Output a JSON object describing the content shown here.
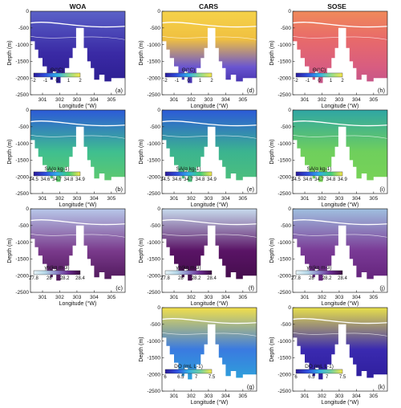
{
  "columns": [
    "WOA",
    "CARS",
    "SOSE"
  ],
  "rows": [
    {
      "variable": "Θ",
      "colorbar_label": "Θ(°C)",
      "ticks": [
        "-2",
        "-1",
        "0",
        "1",
        "2"
      ],
      "colors": [
        "#2a1a9a",
        "#2f4fe0",
        "#2fb0e8",
        "#8edc90",
        "#f5e64a"
      ],
      "panels": [
        "(a)",
        "(d)",
        "(h)"
      ]
    },
    {
      "variable": "SA",
      "colorbar_label": "SA(g kg-1)",
      "ticks": [
        "34.5",
        "34.6",
        "34.7",
        "34.8",
        "34.9"
      ],
      "colors": [
        "#2a1a9a",
        "#2f4fe0",
        "#2fb0e8",
        "#3ecf7a",
        "#f5e64a"
      ],
      "panels": [
        "(b)",
        "(e)",
        "(i)"
      ]
    },
    {
      "variable": "γn",
      "colorbar_label": "γn(kg m-3)",
      "ticks": [
        "27.8",
        "28",
        "28.2",
        "28.4"
      ],
      "colors": [
        "#e8f4f8",
        "#b4d7e8",
        "#8a80c8",
        "#6a2a90",
        "#3a0a40"
      ],
      "panels": [
        "(c)",
        "(f)",
        "(j)"
      ]
    },
    {
      "variable": "DO",
      "colorbar_label": "DO (mL L-1)",
      "ticks": [
        "6",
        "6.5",
        "7",
        "7.5"
      ],
      "colors": [
        "#2a1a9a",
        "#2f4fe0",
        "#2fb0e8",
        "#6fd0a0",
        "#f5e64a"
      ],
      "panels": [
        null,
        "(g)",
        "(k)"
      ]
    }
  ],
  "axes": {
    "ylabel": "Depth (m)",
    "xlabel": "Longitude (°W)",
    "yticks": [
      "0",
      "-500",
      "-1000",
      "-1500",
      "-2000",
      "-2500"
    ],
    "xticks": [
      "301",
      "302",
      "303",
      "304",
      "305"
    ]
  },
  "chart_data": [
    {
      "type": "heatmap",
      "panel": "(a)",
      "source": "WOA",
      "variable": "Θ",
      "xlabel": "Longitude (°W)",
      "ylabel": "Depth (m)",
      "xlim": [
        300.3,
        305.8
      ],
      "ylim": [
        -2500,
        0
      ],
      "colorbar_label": "Θ(°C)",
      "colorbar_range": [
        -2,
        2
      ]
    },
    {
      "type": "heatmap",
      "panel": "(d)",
      "source": "CARS",
      "variable": "Θ",
      "xlabel": "Longitude (°W)",
      "ylabel": "Depth (m)",
      "xlim": [
        300.3,
        305.8
      ],
      "ylim": [
        -2500,
        0
      ],
      "colorbar_label": "Θ(°C)",
      "colorbar_range": [
        -2,
        2
      ]
    },
    {
      "type": "heatmap",
      "panel": "(h)",
      "source": "SOSE",
      "variable": "Θ",
      "xlabel": "Longitude (°W)",
      "ylabel": "Depth (m)",
      "xlim": [
        300.3,
        305.8
      ],
      "ylim": [
        -2500,
        0
      ],
      "colorbar_label": "Θ(°C)",
      "colorbar_range": [
        -2,
        2
      ]
    },
    {
      "type": "heatmap",
      "panel": "(b)",
      "source": "WOA",
      "variable": "SA",
      "xlabel": "Longitude (°W)",
      "ylabel": "Depth (m)",
      "xlim": [
        300.3,
        305.8
      ],
      "ylim": [
        -2500,
        0
      ],
      "colorbar_label": "SA(g kg-1)",
      "colorbar_range": [
        34.5,
        34.9
      ]
    },
    {
      "type": "heatmap",
      "panel": "(e)",
      "source": "CARS",
      "variable": "SA",
      "xlabel": "Longitude (°W)",
      "ylabel": "Depth (m)",
      "xlim": [
        300.3,
        305.8
      ],
      "ylim": [
        -2500,
        0
      ],
      "colorbar_label": "SA(g kg-1)",
      "colorbar_range": [
        34.5,
        34.9
      ]
    },
    {
      "type": "heatmap",
      "panel": "(i)",
      "source": "SOSE",
      "variable": "SA",
      "xlabel": "Longitude (°W)",
      "ylabel": "Depth (m)",
      "xlim": [
        300.3,
        305.8
      ],
      "ylim": [
        -2500,
        0
      ],
      "colorbar_label": "SA(g kg-1)",
      "colorbar_range": [
        34.5,
        34.9
      ]
    },
    {
      "type": "heatmap",
      "panel": "(c)",
      "source": "WOA",
      "variable": "γn",
      "xlabel": "Longitude (°W)",
      "ylabel": "Depth (m)",
      "xlim": [
        300.3,
        305.8
      ],
      "ylim": [
        -2500,
        0
      ],
      "colorbar_label": "γn(kg m-3)",
      "colorbar_range": [
        27.7,
        28.5
      ]
    },
    {
      "type": "heatmap",
      "panel": "(f)",
      "source": "CARS",
      "variable": "γn",
      "xlabel": "Longitude (°W)",
      "ylabel": "Depth (m)",
      "xlim": [
        300.3,
        305.8
      ],
      "ylim": [
        -2500,
        0
      ],
      "colorbar_label": "γn(kg m-3)",
      "colorbar_range": [
        27.7,
        28.5
      ]
    },
    {
      "type": "heatmap",
      "panel": "(j)",
      "source": "SOSE",
      "variable": "γn",
      "xlabel": "Longitude (°W)",
      "ylabel": "Depth (m)",
      "xlim": [
        300.3,
        305.8
      ],
      "ylim": [
        -2500,
        0
      ],
      "colorbar_label": "γn(kg m-3)",
      "colorbar_range": [
        27.7,
        28.5
      ]
    },
    {
      "type": "heatmap",
      "panel": "(g)",
      "source": "CARS",
      "variable": "DO",
      "xlabel": "Longitude (°W)",
      "ylabel": "Depth (m)",
      "xlim": [
        300.3,
        305.8
      ],
      "ylim": [
        -2500,
        0
      ],
      "colorbar_label": "DO (mL L-1)",
      "colorbar_range": [
        5.8,
        7.7
      ]
    },
    {
      "type": "heatmap",
      "panel": "(k)",
      "source": "SOSE",
      "variable": "DO",
      "xlabel": "Longitude (°W)",
      "ylabel": "Depth (m)",
      "xlim": [
        300.3,
        305.8
      ],
      "ylim": [
        -2500,
        0
      ],
      "colorbar_label": "DO (mL L-1)",
      "colorbar_range": [
        5.8,
        7.7
      ]
    }
  ]
}
